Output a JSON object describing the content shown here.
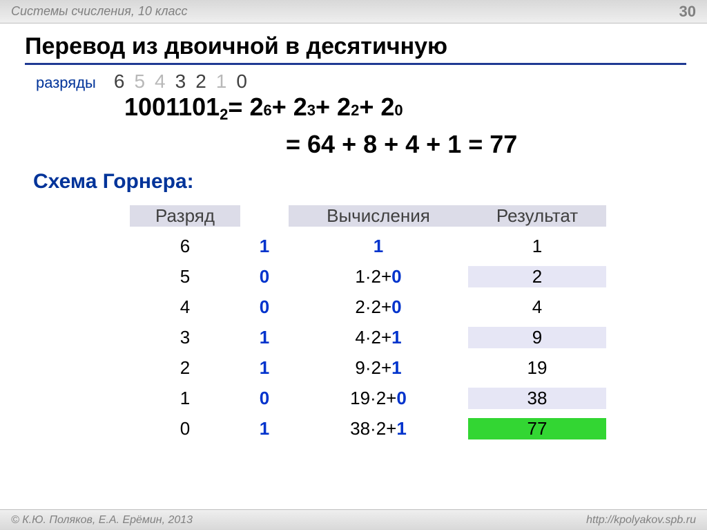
{
  "header": {
    "subject": "Системы счисления, 10 класс",
    "page_number": "30"
  },
  "title": "Перевод из двоичной в десятичную",
  "digits_label": "разряды",
  "digit_positions": [
    {
      "value": "6",
      "dim": false
    },
    {
      "value": "5",
      "dim": true
    },
    {
      "value": "4",
      "dim": true
    },
    {
      "value": "3",
      "dim": false
    },
    {
      "value": "2",
      "dim": false
    },
    {
      "value": "1",
      "dim": true
    },
    {
      "value": "0",
      "dim": false
    }
  ],
  "equation": {
    "binary": "1001101",
    "subscript": "2",
    "eq1_prefix": " = 2",
    "p1": "6",
    "plus": " + 2",
    "p2": "3",
    "p3": "2",
    "p4": "0",
    "eq2": "= 64 + 8 + 4 + 1 = 77"
  },
  "horner_label": "Схема Горнера:",
  "table": {
    "headers": {
      "c1": "Разряд",
      "c2": "",
      "c3": "Вычисления",
      "c4": "Результат"
    },
    "rows": [
      {
        "pos": "6",
        "digit": "1",
        "calc_pre": "",
        "calc_digit": "1",
        "is_first": true,
        "result": "1",
        "shade": false,
        "final": false
      },
      {
        "pos": "5",
        "digit": "0",
        "calc_pre": "1·2+",
        "calc_digit": "0",
        "is_first": false,
        "result": "2",
        "shade": true,
        "final": false
      },
      {
        "pos": "4",
        "digit": "0",
        "calc_pre": "2·2+",
        "calc_digit": "0",
        "is_first": false,
        "result": "4",
        "shade": false,
        "final": false
      },
      {
        "pos": "3",
        "digit": "1",
        "calc_pre": "4·2+",
        "calc_digit": "1",
        "is_first": false,
        "result": "9",
        "shade": true,
        "final": false
      },
      {
        "pos": "2",
        "digit": "1",
        "calc_pre": "9·2+",
        "calc_digit": "1",
        "is_first": false,
        "result": "19",
        "shade": false,
        "final": false
      },
      {
        "pos": "1",
        "digit": "0",
        "calc_pre": "19·2+",
        "calc_digit": "0",
        "is_first": false,
        "result": "38",
        "shade": true,
        "final": false
      },
      {
        "pos": "0",
        "digit": "1",
        "calc_pre": "38·2+",
        "calc_digit": "1",
        "is_first": false,
        "result": "77",
        "shade": false,
        "final": true
      }
    ]
  },
  "footer": {
    "copyright": "© К.Ю. Поляков, Е.А. Ерёмин, 2013",
    "url": "http://kpolyakov.spb.ru"
  },
  "colors": {
    "accent": "#003399",
    "digit_bold": "#0033cc",
    "header_fill": "#dcdce8",
    "row_shade": "#e6e6f5",
    "final_fill": "#33d633",
    "underline": "#1f3a93",
    "gray_text": "#808080",
    "light_digit": "#b8b8b8"
  }
}
